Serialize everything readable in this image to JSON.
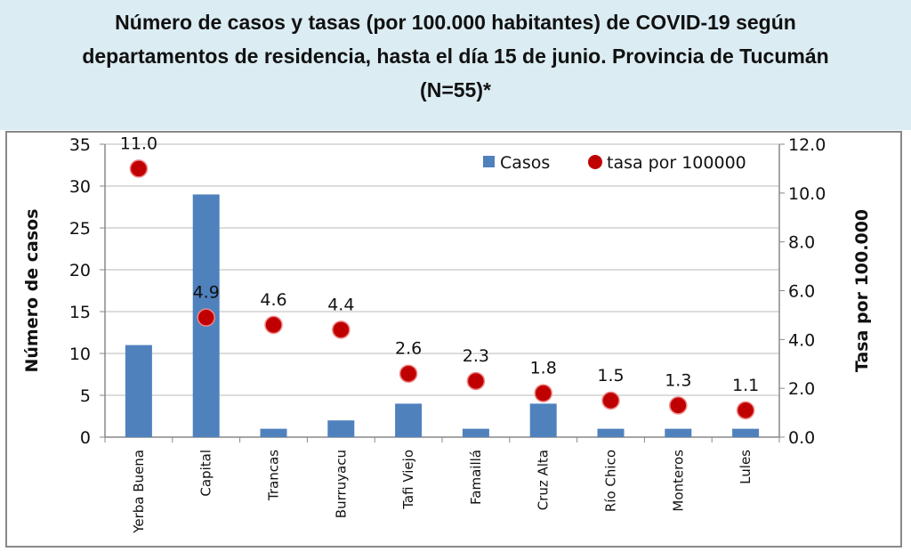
{
  "chart_data": {
    "type": "bar",
    "title": "Número de casos y tasas (por 100.000 habitantes) de COVID-19 según departamentos de residencia, hasta el día 15 de junio. Provincia de Tucumán (N=55)*",
    "title_lines": [
      "Número de casos y tasas (por 100.000 habitantes) de COVID-19 según",
      "departamentos de residencia, hasta el día 15 de junio. Provincia de Tucumán",
      "(N=55)*"
    ],
    "categories": [
      "Yerba Buena",
      "Capital",
      "Trancas",
      "Burruyacu",
      "Tafi Viejo",
      "Famaillá",
      "Cruz Alta",
      "Río Chico",
      "Monteros",
      "Lules"
    ],
    "series": [
      {
        "name": "Casos",
        "type": "bar",
        "axis": "left",
        "color": "#4f81bd",
        "values": [
          11,
          29,
          1,
          2,
          4,
          1,
          4,
          1,
          1,
          1
        ]
      },
      {
        "name": "tasa por 100000",
        "type": "scatter",
        "axis": "right",
        "color": "#c00000",
        "values": [
          11.0,
          4.9,
          4.6,
          4.4,
          2.6,
          2.3,
          1.8,
          1.5,
          1.3,
          1.1
        ],
        "labels": [
          "11.0",
          "4.9",
          "4.6",
          "4.4",
          "2.6",
          "2.3",
          "1.8",
          "1.5",
          "1.3",
          "1.1"
        ]
      }
    ],
    "ylabel": "Número de casos",
    "y2label": "Tasa por 100.000",
    "ylim": [
      0,
      35
    ],
    "y2lim": [
      0,
      12
    ],
    "yticks": [
      "0",
      "5",
      "10",
      "15",
      "20",
      "25",
      "30",
      "35"
    ],
    "y2ticks": [
      "0.0",
      "2.0",
      "4.0",
      "6.0",
      "8.0",
      "10.0",
      "12.0"
    ],
    "grid": true,
    "legend": "top-right"
  }
}
